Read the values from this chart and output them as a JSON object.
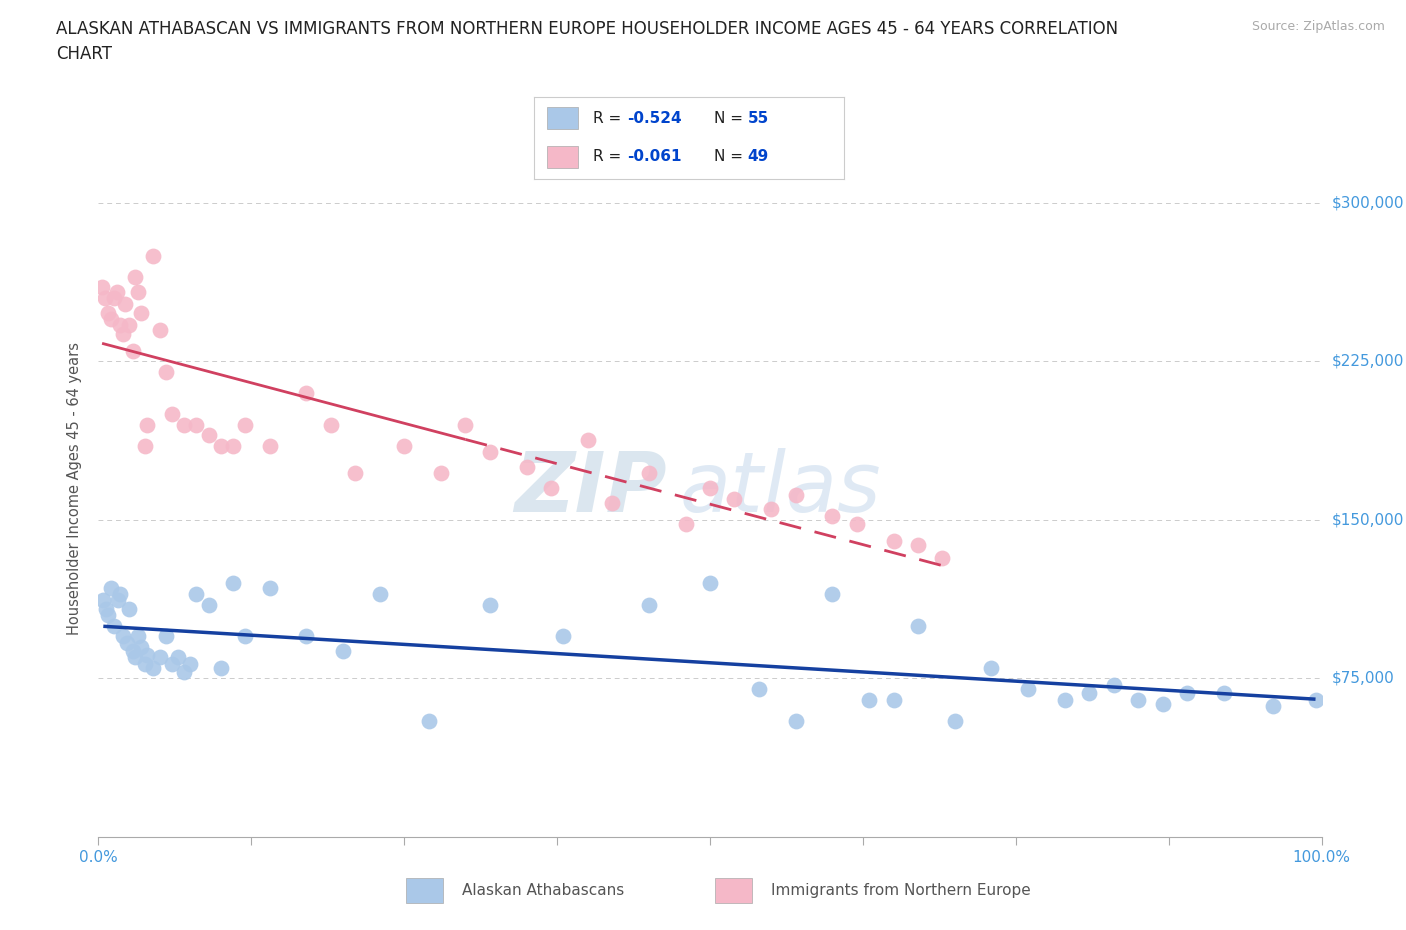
{
  "title_line1": "ALASKAN ATHABASCAN VS IMMIGRANTS FROM NORTHERN EUROPE HOUSEHOLDER INCOME AGES 45 - 64 YEARS CORRELATION",
  "title_line2": "CHART",
  "source": "Source: ZipAtlas.com",
  "ylabel": "Householder Income Ages 45 - 64 years",
  "watermark_zip": "ZIP",
  "watermark_atlas": "atlas",
  "blue_R": "-0.524",
  "blue_N": "55",
  "pink_R": "-0.061",
  "pink_N": "49",
  "blue_scatter_color": "#aac8e8",
  "pink_scatter_color": "#f5b8c8",
  "blue_line_color": "#1540a0",
  "pink_line_color": "#d04060",
  "axis_label_color": "#4499dd",
  "legend_R_color": "#0044cc",
  "legend_text_color": "#222222",
  "xlim": [
    0,
    100
  ],
  "ylim": [
    0,
    330000
  ],
  "yticks": [
    75000,
    150000,
    225000,
    300000
  ],
  "ytick_labels": [
    "$75,000",
    "$150,000",
    "$225,000",
    "$300,000"
  ],
  "xtick_positions": [
    0,
    12.5,
    25,
    37.5,
    50,
    62.5,
    75,
    87.5,
    100
  ],
  "xtick_labels_show": {
    "0": "0.0%",
    "100": "100.0%"
  },
  "blue_x": [
    0.4,
    0.6,
    0.8,
    1.0,
    1.3,
    1.6,
    1.8,
    2.0,
    2.3,
    2.5,
    2.8,
    3.0,
    3.2,
    3.5,
    3.8,
    4.0,
    4.5,
    5.0,
    5.5,
    6.0,
    6.5,
    7.0,
    7.5,
    8.0,
    9.0,
    10.0,
    11.0,
    12.0,
    14.0,
    17.0,
    20.0,
    23.0,
    27.0,
    32.0,
    38.0,
    45.0,
    50.0,
    54.0,
    57.0,
    60.0,
    63.0,
    65.0,
    67.0,
    70.0,
    73.0,
    76.0,
    79.0,
    81.0,
    83.0,
    85.0,
    87.0,
    89.0,
    92.0,
    96.0,
    99.5
  ],
  "blue_y": [
    112000,
    108000,
    105000,
    118000,
    100000,
    112000,
    115000,
    95000,
    92000,
    108000,
    88000,
    85000,
    95000,
    90000,
    82000,
    86000,
    80000,
    85000,
    95000,
    82000,
    85000,
    78000,
    82000,
    115000,
    110000,
    80000,
    120000,
    95000,
    118000,
    95000,
    88000,
    115000,
    55000,
    110000,
    95000,
    110000,
    120000,
    70000,
    55000,
    115000,
    65000,
    65000,
    100000,
    55000,
    80000,
    70000,
    65000,
    68000,
    72000,
    65000,
    63000,
    68000,
    68000,
    62000,
    65000
  ],
  "pink_x": [
    0.3,
    0.5,
    0.8,
    1.0,
    1.3,
    1.5,
    1.8,
    2.0,
    2.2,
    2.5,
    2.8,
    3.0,
    3.2,
    3.5,
    3.8,
    4.0,
    4.5,
    5.0,
    5.5,
    6.0,
    7.0,
    8.0,
    9.0,
    10.0,
    11.0,
    12.0,
    14.0,
    17.0,
    19.0,
    21.0,
    25.0,
    28.0,
    30.0,
    32.0,
    35.0,
    37.0,
    40.0,
    42.0,
    45.0,
    48.0,
    50.0,
    52.0,
    55.0,
    57.0,
    60.0,
    62.0,
    65.0,
    67.0,
    69.0
  ],
  "pink_y": [
    260000,
    255000,
    248000,
    245000,
    255000,
    258000,
    242000,
    238000,
    252000,
    242000,
    230000,
    265000,
    258000,
    248000,
    185000,
    195000,
    275000,
    240000,
    220000,
    200000,
    195000,
    195000,
    190000,
    185000,
    185000,
    195000,
    185000,
    210000,
    195000,
    172000,
    185000,
    172000,
    195000,
    182000,
    175000,
    165000,
    188000,
    158000,
    172000,
    148000,
    165000,
    160000,
    155000,
    162000,
    152000,
    148000,
    140000,
    138000,
    132000
  ],
  "grid_color": "#cccccc",
  "background_color": "#ffffff",
  "title_fontsize": 12,
  "axis_tick_fontsize": 11,
  "pink_solid_end_x": 30.0
}
